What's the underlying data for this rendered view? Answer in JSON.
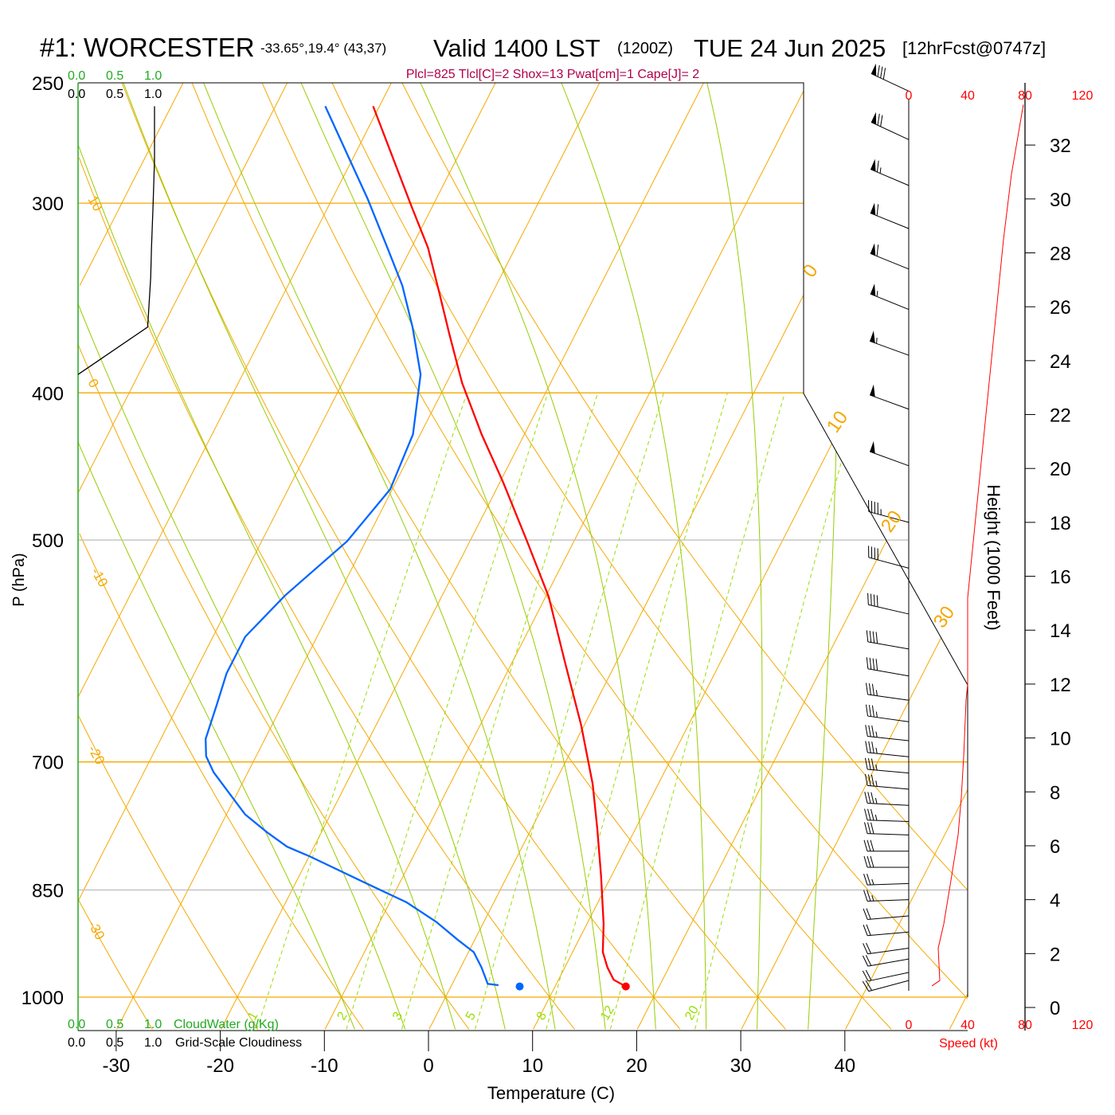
{
  "header": {
    "station": "#1: WORCESTER",
    "coords": "-33.65°,19.4° (43,37)",
    "valid": "Valid 1400 LST",
    "zulu": "(1200Z)",
    "date": "TUE 24 Jun 2025",
    "forecast": "[12hrFcst@0747z]",
    "stats": "Plcl=825 Tlcl[C]=2 Shox=13 Pwat[cm]=1 Cape[J]= 2"
  },
  "colors": {
    "temperature": "#ff0000",
    "dewpoint": "#0066ff",
    "isotherm": "#f5a800",
    "moist_adiabat": "#99cc00",
    "mixing_ratio": "#99dd00",
    "cloudwater": "#22aa22",
    "stats": "#b0004a"
  },
  "chart_data": {
    "type": "line",
    "title": "Skew-T log-P sounding",
    "xlabel": "Temperature (C)",
    "ylabel": "P (hPa)",
    "x_ticks": [
      -30,
      -20,
      -10,
      0,
      10,
      20,
      30,
      40
    ],
    "y_ticks": [
      250,
      300,
      400,
      500,
      700,
      850,
      1000
    ],
    "ylim": [
      1052,
      250
    ],
    "isotherm_labels_left": [
      "10",
      "0",
      "-10",
      "-20",
      "-30"
    ],
    "isotherm_labels_right": [
      "0",
      "10",
      "20",
      "30"
    ],
    "mixing_ratio_labels": [
      "1",
      "2",
      "3",
      "5",
      "8",
      "12",
      "20"
    ],
    "mixing_ratio_values": [
      1,
      2,
      3,
      5,
      8,
      12,
      20
    ],
    "series": [
      {
        "name": "Temperature",
        "color": "#ff0000",
        "points": [
          [
            259,
            -50.6
          ],
          [
            301,
            -42.1
          ],
          [
            321,
            -38.4
          ],
          [
            343,
            -35.2
          ],
          [
            366,
            -32.1
          ],
          [
            394,
            -28.5
          ],
          [
            426,
            -24.1
          ],
          [
            458,
            -19.7
          ],
          [
            501,
            -14.5
          ],
          [
            545,
            -9.7
          ],
          [
            601,
            -5.0
          ],
          [
            662,
            -0.3
          ],
          [
            724,
            3.7
          ],
          [
            774,
            6.3
          ],
          [
            832,
            9.0
          ],
          [
            895,
            11.6
          ],
          [
            934,
            12.9
          ],
          [
            956,
            14.1
          ],
          [
            974,
            15.3
          ],
          [
            984,
            16.8
          ]
        ],
        "surface": [
          984,
          16.8
        ]
      },
      {
        "name": "Dewpoint",
        "color": "#0066ff",
        "points": [
          [
            259,
            -55.2
          ],
          [
            298,
            -46.6
          ],
          [
            321,
            -42.3
          ],
          [
            340,
            -39.0
          ],
          [
            362,
            -36.0
          ],
          [
            389,
            -32.9
          ],
          [
            426,
            -30.7
          ],
          [
            463,
            -30.2
          ],
          [
            501,
            -31.8
          ],
          [
            544,
            -35.1
          ],
          [
            579,
            -36.9
          ],
          [
            612,
            -36.9
          ],
          [
            642,
            -36.3
          ],
          [
            676,
            -35.7
          ],
          [
            694,
            -34.8
          ],
          [
            711,
            -33.3
          ],
          [
            731,
            -31.1
          ],
          [
            758,
            -28.2
          ],
          [
            779,
            -25.2
          ],
          [
            796,
            -22.6
          ],
          [
            808,
            -19.9
          ],
          [
            842,
            -13.1
          ],
          [
            866,
            -8.4
          ],
          [
            892,
            -4.6
          ],
          [
            917,
            -1.6
          ],
          [
            934,
            0.5
          ],
          [
            956,
            2.0
          ],
          [
            980,
            3.4
          ],
          [
            982,
            4.5
          ]
        ],
        "surface": [
          984,
          6.6
        ]
      }
    ],
    "cloudiness": {
      "label_cloudwater": "CloudWater (g/Kg)",
      "label_cloudiness": "Grid-Scale Cloudiness",
      "scale": [
        "0.0",
        "0.5",
        "1.0"
      ],
      "points": [
        [
          259,
          1.0
        ],
        [
          281,
          1.0
        ],
        [
          302,
          0.98
        ],
        [
          321,
          0.96
        ],
        [
          336,
          0.95
        ],
        [
          362,
          0.91
        ],
        [
          389,
          0.0
        ]
      ]
    },
    "wind_panel": {
      "speed_label": "Speed (kt)",
      "speed_ticks": [
        "0",
        "40",
        "80",
        "120"
      ],
      "height_label": "Height (1000 Feet)",
      "height_ticks": [
        0,
        2,
        4,
        6,
        8,
        10,
        12,
        14,
        16,
        18,
        20,
        22,
        24,
        26,
        28,
        30,
        32
      ],
      "speed_profile": [
        [
          0.8,
          15.7
        ],
        [
          1.0,
          21.1
        ],
        [
          2.2,
          20.0
        ],
        [
          3.1,
          23.8
        ],
        [
          4.9,
          29.2
        ],
        [
          6.4,
          33.5
        ],
        [
          7.8,
          35.7
        ],
        [
          9.3,
          37.3
        ],
        [
          11.4,
          38.9
        ],
        [
          12.0,
          40
        ],
        [
          15.2,
          40
        ],
        [
          22.6,
          53.5
        ],
        [
          28.5,
          64.3
        ],
        [
          30.9,
          69.7
        ],
        [
          33.5,
          77.8
        ]
      ],
      "barbs": [
        [
          34.0,
          295,
          78
        ],
        [
          32.2,
          295,
          70
        ],
        [
          30.5,
          293,
          66
        ],
        [
          28.9,
          292,
          62
        ],
        [
          27.4,
          292,
          58
        ],
        [
          25.9,
          292,
          56
        ],
        [
          24.2,
          290,
          54
        ],
        [
          22.2,
          290,
          52
        ],
        [
          20.1,
          290,
          48
        ],
        [
          18.0,
          285,
          45
        ],
        [
          16.3,
          285,
          42
        ],
        [
          14.6,
          283,
          40
        ],
        [
          13.3,
          280,
          40
        ],
        [
          12.3,
          280,
          40
        ],
        [
          11.4,
          278,
          37
        ],
        [
          10.6,
          278,
          37
        ],
        [
          9.9,
          276,
          36
        ],
        [
          9.3,
          276,
          36
        ],
        [
          8.7,
          275,
          35
        ],
        [
          8.1,
          275,
          35
        ],
        [
          7.5,
          273,
          34
        ],
        [
          6.9,
          272,
          33
        ],
        [
          6.4,
          272,
          32
        ],
        [
          5.8,
          270,
          30
        ],
        [
          5.2,
          270,
          28
        ],
        [
          4.6,
          268,
          25
        ],
        [
          4.0,
          268,
          24
        ],
        [
          3.4,
          265,
          22
        ],
        [
          2.8,
          265,
          21
        ],
        [
          2.2,
          262,
          20
        ],
        [
          1.8,
          260,
          20
        ],
        [
          1.3,
          258,
          21
        ],
        [
          1.0,
          255,
          18
        ]
      ]
    }
  }
}
